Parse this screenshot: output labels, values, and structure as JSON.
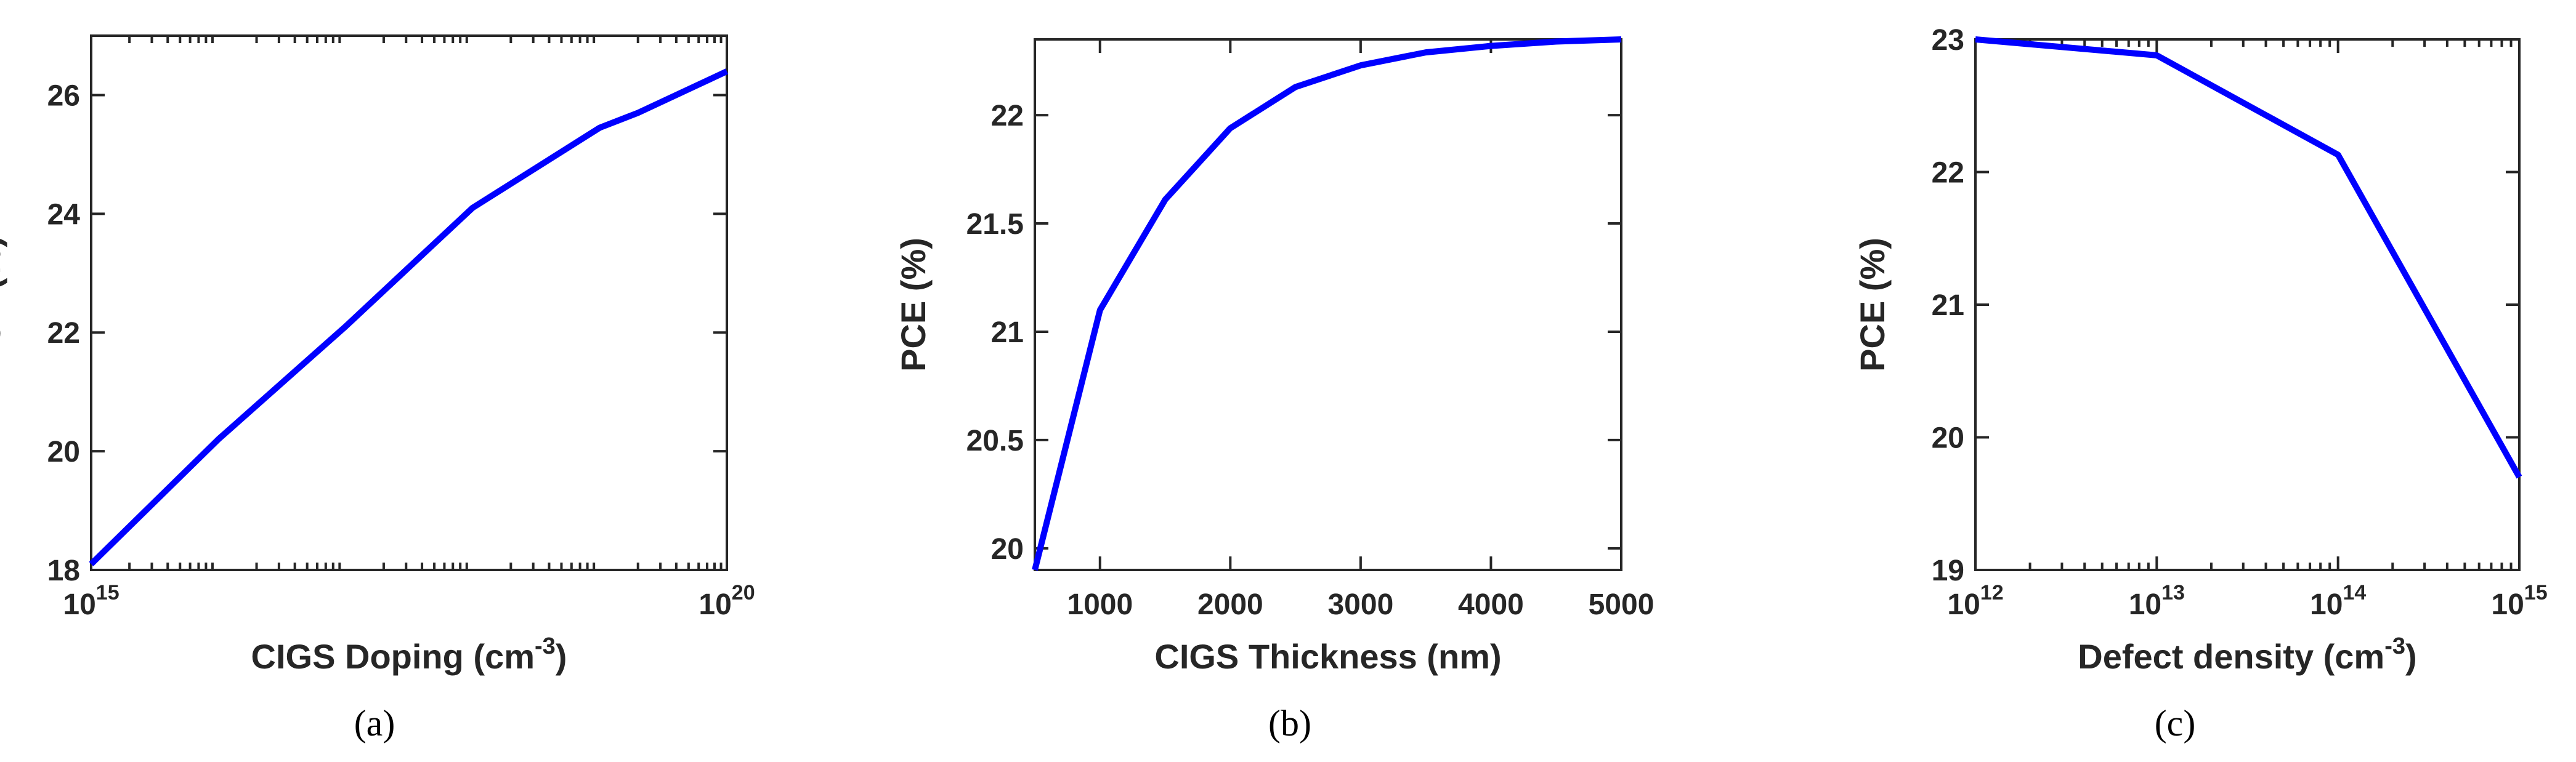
{
  "line_color": "#0000ff",
  "axis_color": "#262626",
  "chart_data": [
    {
      "type": "line",
      "panel": "(a)",
      "xlabel": "CIGS Doping (cm",
      "xlabel_unit_exp": "-3",
      "xlabel_close": ")",
      "ylabel": "PCE (%)",
      "xscale": "log",
      "xlim": [
        1000000000000000.0,
        1e+20
      ],
      "ylim": [
        18,
        27
      ],
      "xticks": [
        {
          "base": "10",
          "exp": "15",
          "v": 1000000000000000.0
        },
        {
          "base": "10",
          "exp": "20",
          "v": 1e+20
        }
      ],
      "yticks": [
        18,
        20,
        22,
        24,
        26
      ],
      "series": [
        {
          "name": "PCE",
          "x": [
            1000000000000000.0,
            1e+16,
            1e+17,
            1e+18,
            1e+19,
            2e+19,
            1e+20
          ],
          "y": [
            18.1,
            20.2,
            22.1,
            24.1,
            25.45,
            25.7,
            26.4
          ]
        }
      ]
    },
    {
      "type": "line",
      "panel": "(b)",
      "xlabel": "CIGS Thickness (nm)",
      "ylabel": "PCE (%)",
      "xscale": "linear",
      "xlim": [
        500,
        5000
      ],
      "ylim": [
        19.9,
        22.35
      ],
      "xticks": [
        1000,
        2000,
        3000,
        4000,
        5000
      ],
      "yticks": [
        "20",
        "20.5",
        "21",
        "21.5",
        "22"
      ],
      "series": [
        {
          "name": "PCE",
          "x": [
            500,
            1000,
            1500,
            2000,
            2500,
            3000,
            3500,
            4000,
            4500,
            5000
          ],
          "y": [
            19.9,
            21.1,
            21.61,
            21.94,
            22.13,
            22.23,
            22.29,
            22.32,
            22.34,
            22.35
          ]
        }
      ]
    },
    {
      "type": "line",
      "panel": "(c)",
      "xlabel": "Defect density (cm",
      "xlabel_unit_exp": "-3",
      "xlabel_close": ")",
      "ylabel": "PCE (%)",
      "xscale": "log",
      "xlim": [
        1000000000000.0,
        1000000000000000.0
      ],
      "ylim": [
        19,
        23
      ],
      "xticks": [
        {
          "base": "10",
          "exp": "12",
          "v": 1000000000000.0
        },
        {
          "base": "10",
          "exp": "13",
          "v": 10000000000000.0
        },
        {
          "base": "10",
          "exp": "14",
          "v": 100000000000000.0
        },
        {
          "base": "10",
          "exp": "15",
          "v": 1000000000000000.0
        }
      ],
      "yticks": [
        19,
        20,
        21,
        22,
        23
      ],
      "series": [
        {
          "name": "PCE",
          "x": [
            1000000000000.0,
            10000000000000.0,
            100000000000000.0,
            1000000000000000.0
          ],
          "y": [
            23.0,
            22.88,
            22.13,
            19.7
          ]
        }
      ]
    }
  ]
}
